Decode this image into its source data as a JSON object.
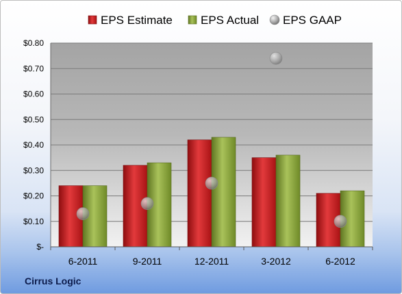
{
  "chart_data": {
    "type": "bar",
    "categories": [
      "6-2011",
      "9-2011",
      "12-2011",
      "3-2012",
      "6-2012"
    ],
    "series": [
      {
        "name": "EPS Estimate",
        "kind": "bar",
        "values": [
          0.24,
          0.32,
          0.42,
          0.35,
          0.21
        ],
        "color": "#c8191b"
      },
      {
        "name": "EPS Actual",
        "kind": "bar",
        "values": [
          0.24,
          0.33,
          0.43,
          0.36,
          0.22
        ],
        "color": "#8da838"
      },
      {
        "name": "EPS GAAP",
        "kind": "scatter",
        "values": [
          0.13,
          0.17,
          0.25,
          0.74,
          0.1
        ],
        "color": "#a8a8a8"
      }
    ],
    "ylim": [
      0,
      0.8
    ],
    "yticks": [
      0,
      0.1,
      0.2,
      0.3,
      0.4,
      0.5,
      0.6,
      0.7,
      0.8
    ],
    "ytick_labels": [
      "$-",
      "$0.10",
      "$0.20",
      "$0.30",
      "$0.40",
      "$0.50",
      "$0.60",
      "$0.70",
      "$0.80"
    ],
    "grid": true,
    "legend_position": "top"
  },
  "footer": {
    "company": "Cirrus Logic"
  }
}
